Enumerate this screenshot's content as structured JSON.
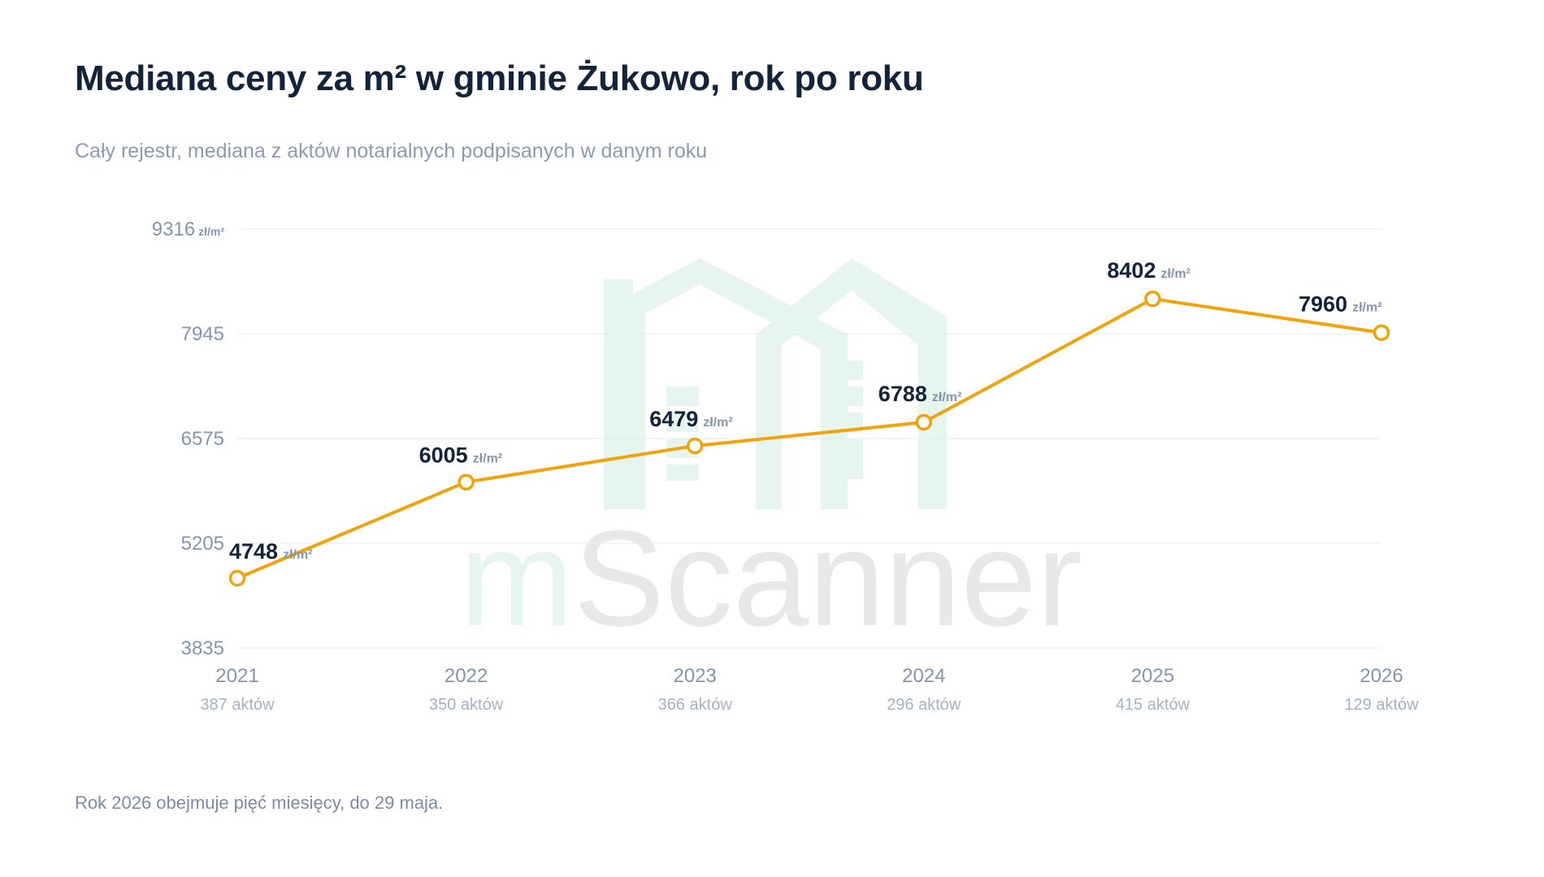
{
  "title": "Mediana ceny za m² w gminie Żukowo, rok po roku",
  "subtitle": "Cały rejestr, mediana z aktów notarialnych podpisanych w danym roku",
  "footnote": "Rok 2026 obejmuje pięć miesięcy, do 29 maja.",
  "watermark": {
    "prefix": "m",
    "suffix": "Scanner",
    "prefix_color": "#e6f6ee",
    "suffix_color": "#e8e8e8",
    "icon": "house-logo-icon",
    "icon_color": "#e6f6ee"
  },
  "colors": {
    "line": "#f0a30a",
    "grid": "#e7ebf0",
    "point_fill": "#ffffff"
  },
  "chart_data": {
    "type": "line",
    "title": "Mediana ceny za m² w gminie Żukowo, rok po roku",
    "subtitle": "Cały rejestr, mediana z aktów notarialnych podpisanych w danym roku",
    "xlabel": "",
    "ylabel": "",
    "unit": "zł/m²",
    "ylim": [
      3835,
      9316
    ],
    "y_ticks": [
      {
        "value": 3835,
        "label": "3835",
        "unit": ""
      },
      {
        "value": 5205,
        "label": "5205",
        "unit": ""
      },
      {
        "value": 6575,
        "label": "6575",
        "unit": ""
      },
      {
        "value": 7945,
        "label": "7945",
        "unit": ""
      },
      {
        "value": 9316,
        "label": "9316",
        "unit": "zł/m²"
      }
    ],
    "grid": true,
    "categories": [
      "2021",
      "2022",
      "2023",
      "2024",
      "2025",
      "2026"
    ],
    "subcategories": [
      "387 aktów",
      "350 aktów",
      "366 aktów",
      "296 aktów",
      "415 aktów",
      "129 aktów"
    ],
    "values": [
      4748,
      6005,
      6479,
      6788,
      8402,
      7960
    ],
    "value_labels": [
      "4748",
      "6005",
      "6479",
      "6788",
      "8402",
      "7960"
    ]
  }
}
